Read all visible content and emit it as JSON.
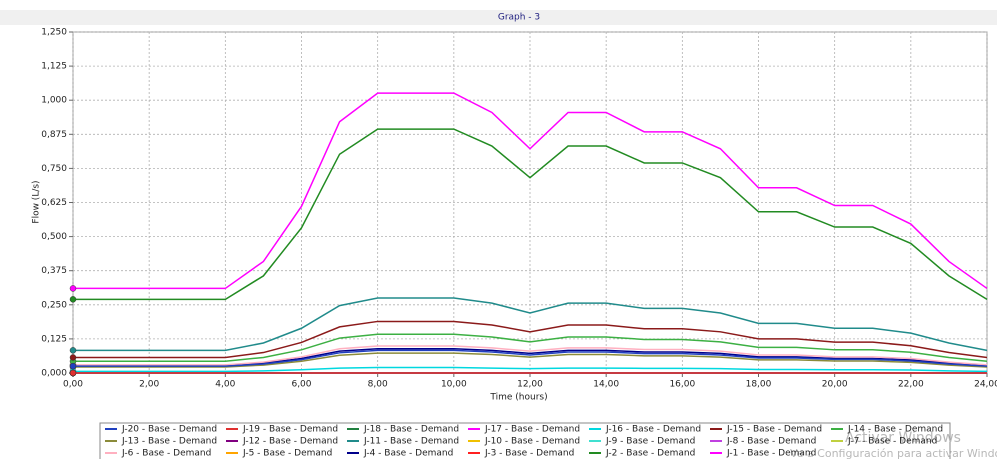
{
  "chart_data": {
    "type": "line",
    "title": "Graph - 3",
    "x_label": "Time (hours)",
    "y_label": "Flow (L/s)",
    "x": [
      0,
      1,
      2,
      3,
      4,
      5,
      6,
      7,
      8,
      9,
      10,
      11,
      12,
      13,
      14,
      15,
      16,
      17,
      18,
      19,
      20,
      21,
      22,
      23,
      24
    ],
    "xlim": [
      0,
      24
    ],
    "xticks": [
      {
        "value": 0,
        "label": "0,00"
      },
      {
        "value": 2,
        "label": "2,00"
      },
      {
        "value": 4,
        "label": "4,00"
      },
      {
        "value": 6,
        "label": "6,00"
      },
      {
        "value": 8,
        "label": "8,00"
      },
      {
        "value": 10,
        "label": "10,00"
      },
      {
        "value": 12,
        "label": "12,00"
      },
      {
        "value": 14,
        "label": "14,00"
      },
      {
        "value": 16,
        "label": "16,00"
      },
      {
        "value": 18,
        "label": "18,00"
      },
      {
        "value": 20,
        "label": "20,00"
      },
      {
        "value": 22,
        "label": "22,00"
      },
      {
        "value": 24,
        "label": "24,00"
      }
    ],
    "ylim": [
      0,
      1.25
    ],
    "yticks": [
      {
        "value": 0,
        "label": "0,000"
      },
      {
        "value": 0.125,
        "label": "0,125"
      },
      {
        "value": 0.25,
        "label": "0,250"
      },
      {
        "value": 0.375,
        "label": "0,375"
      },
      {
        "value": 0.5,
        "label": "0,500"
      },
      {
        "value": 0.625,
        "label": "0,625"
      },
      {
        "value": 0.75,
        "label": "0,750"
      },
      {
        "value": 0.875,
        "label": "0,875"
      },
      {
        "value": 1,
        "label": "1,000"
      },
      {
        "value": 1.125,
        "label": "1,125"
      },
      {
        "value": 1.25,
        "label": "1,250"
      }
    ],
    "grid": true,
    "legend": "bottom",
    "series": [
      {
        "name": "J-20 - Base - Demand",
        "color": "#2040c0",
        "values": [
          0.025,
          0.025,
          0.025,
          0.025,
          0.025,
          0.033,
          0.049,
          0.074,
          0.083,
          0.083,
          0.083,
          0.077,
          0.066,
          0.077,
          0.077,
          0.071,
          0.071,
          0.066,
          0.055,
          0.055,
          0.05,
          0.05,
          0.044,
          0.033,
          0.025
        ]
      },
      {
        "name": "J-19 - Base - Demand",
        "color": "#e03030",
        "values": [
          0,
          0,
          0,
          0,
          0,
          0,
          0,
          0,
          0,
          0,
          0,
          0,
          0,
          0,
          0,
          0,
          0,
          0,
          0,
          0,
          0,
          0,
          0,
          0,
          0
        ]
      },
      {
        "name": "J-18 - Base - Demand",
        "color": "#208040",
        "values": [
          0,
          0,
          0,
          0,
          0,
          0,
          0,
          0,
          0,
          0,
          0,
          0,
          0,
          0,
          0,
          0,
          0,
          0,
          0,
          0,
          0,
          0,
          0,
          0,
          0
        ]
      },
      {
        "name": "J-17 - Base - Demand",
        "color": "#ff00ff",
        "values": [
          0,
          0,
          0,
          0,
          0,
          0,
          0,
          0,
          0,
          0,
          0,
          0,
          0,
          0,
          0,
          0,
          0,
          0,
          0,
          0,
          0,
          0,
          0,
          0,
          0
        ]
      },
      {
        "name": "J-16 - Base - Demand",
        "color": "#00d8e0",
        "values": [
          0.006,
          0.006,
          0.006,
          0.006,
          0.006,
          0.008,
          0.012,
          0.018,
          0.02,
          0.02,
          0.02,
          0.018,
          0.016,
          0.018,
          0.018,
          0.017,
          0.017,
          0.016,
          0.013,
          0.013,
          0.012,
          0.012,
          0.011,
          0.008,
          0.006
        ]
      },
      {
        "name": "J-15 - Base - Demand",
        "color": "#8b1a1a",
        "values": [
          0.057,
          0.057,
          0.057,
          0.057,
          0.057,
          0.075,
          0.112,
          0.169,
          0.189,
          0.189,
          0.189,
          0.176,
          0.151,
          0.176,
          0.176,
          0.162,
          0.162,
          0.151,
          0.125,
          0.125,
          0.113,
          0.113,
          0.1,
          0.075,
          0.057
        ]
      },
      {
        "name": "J-14 - Base - Demand",
        "color": "#3cb043",
        "values": [
          0.043,
          0.043,
          0.043,
          0.043,
          0.043,
          0.057,
          0.085,
          0.128,
          0.142,
          0.142,
          0.142,
          0.132,
          0.114,
          0.132,
          0.132,
          0.123,
          0.123,
          0.114,
          0.094,
          0.094,
          0.085,
          0.085,
          0.076,
          0.057,
          0.043
        ]
      },
      {
        "name": "J-13 - Base - Demand",
        "color": "#8b8b3a",
        "values": [
          0.022,
          0.022,
          0.022,
          0.022,
          0.022,
          0.029,
          0.043,
          0.065,
          0.073,
          0.073,
          0.073,
          0.068,
          0.058,
          0.068,
          0.068,
          0.063,
          0.063,
          0.058,
          0.048,
          0.048,
          0.044,
          0.044,
          0.039,
          0.029,
          0.022
        ]
      },
      {
        "name": "J-12 - Base - Demand",
        "color": "#800080",
        "values": [
          0,
          0,
          0,
          0,
          0,
          0,
          0,
          0,
          0,
          0,
          0,
          0,
          0,
          0,
          0,
          0,
          0,
          0,
          0,
          0,
          0,
          0,
          0,
          0,
          0
        ]
      },
      {
        "name": "J-11 - Base - Demand",
        "color": "#208b8b",
        "values": [
          0.083,
          0.083,
          0.083,
          0.083,
          0.083,
          0.11,
          0.164,
          0.247,
          0.275,
          0.275,
          0.275,
          0.256,
          0.22,
          0.256,
          0.256,
          0.237,
          0.237,
          0.22,
          0.182,
          0.182,
          0.164,
          0.164,
          0.146,
          0.11,
          0.083
        ]
      },
      {
        "name": "J-10 - Base - Demand",
        "color": "#f0c000",
        "values": [
          0,
          0,
          0,
          0,
          0,
          0,
          0,
          0,
          0,
          0,
          0,
          0,
          0,
          0,
          0,
          0,
          0,
          0,
          0,
          0,
          0,
          0,
          0,
          0,
          0
        ]
      },
      {
        "name": "J-9 - Base - Demand",
        "color": "#40e0d0",
        "values": [
          0,
          0,
          0,
          0,
          0,
          0,
          0,
          0,
          0,
          0,
          0,
          0,
          0,
          0,
          0,
          0,
          0,
          0,
          0,
          0,
          0,
          0,
          0,
          0,
          0
        ]
      },
      {
        "name": "J-8 - Base - Demand",
        "color": "#c040e0",
        "values": [
          0,
          0,
          0,
          0,
          0,
          0,
          0,
          0,
          0,
          0,
          0,
          0,
          0,
          0,
          0,
          0,
          0,
          0,
          0,
          0,
          0,
          0,
          0,
          0,
          0
        ]
      },
      {
        "name": "J-7 - Base - Demand",
        "color": "#c0d040",
        "values": [
          0,
          0,
          0,
          0,
          0,
          0,
          0,
          0,
          0,
          0,
          0,
          0,
          0,
          0,
          0,
          0,
          0,
          0,
          0,
          0,
          0,
          0,
          0,
          0,
          0
        ]
      },
      {
        "name": "J-6 - Base - Demand",
        "color": "#ffb0c0",
        "values": [
          0.03,
          0.03,
          0.03,
          0.03,
          0.03,
          0.04,
          0.059,
          0.089,
          0.099,
          0.099,
          0.099,
          0.092,
          0.08,
          0.092,
          0.092,
          0.086,
          0.086,
          0.08,
          0.066,
          0.066,
          0.059,
          0.059,
          0.053,
          0.04,
          0.03
        ]
      },
      {
        "name": "J-5 - Base - Demand",
        "color": "#ffa500",
        "values": [
          0,
          0,
          0,
          0,
          0,
          0,
          0,
          0,
          0,
          0,
          0,
          0,
          0,
          0,
          0,
          0,
          0,
          0,
          0,
          0,
          0,
          0,
          0,
          0,
          0
        ]
      },
      {
        "name": "J-4 - Base - Demand",
        "color": "#00008b",
        "values": [
          0.027,
          0.027,
          0.027,
          0.027,
          0.027,
          0.036,
          0.053,
          0.08,
          0.089,
          0.089,
          0.089,
          0.083,
          0.072,
          0.083,
          0.083,
          0.077,
          0.077,
          0.072,
          0.059,
          0.059,
          0.053,
          0.053,
          0.048,
          0.036,
          0.027
        ]
      },
      {
        "name": "J-3 - Base - Demand",
        "color": "#ff2020",
        "values": [
          0,
          0,
          0,
          0,
          0,
          0,
          0,
          0,
          0,
          0,
          0,
          0,
          0,
          0,
          0,
          0,
          0,
          0,
          0,
          0,
          0,
          0,
          0,
          0,
          0
        ]
      },
      {
        "name": "J-2 - Base - Demand",
        "color": "#228b22",
        "values": [
          0.27,
          0.27,
          0.27,
          0.27,
          0.27,
          0.356,
          0.532,
          0.802,
          0.894,
          0.894,
          0.894,
          0.832,
          0.716,
          0.832,
          0.832,
          0.77,
          0.77,
          0.716,
          0.591,
          0.591,
          0.535,
          0.535,
          0.475,
          0.356,
          0.27
        ]
      },
      {
        "name": "J-1 - Base - Demand",
        "color": "#ff00ff",
        "values": [
          0.31,
          0.31,
          0.31,
          0.31,
          0.31,
          0.409,
          0.611,
          0.921,
          1.026,
          1.026,
          1.026,
          0.955,
          0.822,
          0.955,
          0.955,
          0.884,
          0.884,
          0.822,
          0.679,
          0.679,
          0.614,
          0.614,
          0.546,
          0.409,
          0.31
        ]
      }
    ]
  },
  "watermark": {
    "title": "Activar Windows",
    "text": "Ve a Configuración para activar Windows."
  }
}
